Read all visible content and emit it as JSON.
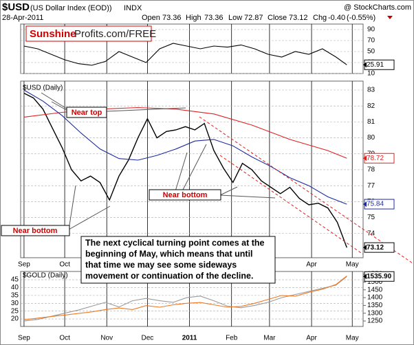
{
  "header": {
    "symbol": "$USD",
    "name": "(US Dollar Index (EOD))",
    "exchange": "INDX",
    "source": "@ StockCharts.com",
    "date": "28-Apr-2011",
    "open_label": "Open",
    "open": 73.36,
    "high_label": "High",
    "high": 73.36,
    "low_label": "Low",
    "low": 72.87,
    "close_label": "Close",
    "close": 73.12,
    "chg_label": "Chg",
    "chg": "-0.40",
    "chg_pct": "(-0.55%)",
    "logo": [
      "Sunshine",
      "Profits.com/FREE"
    ]
  },
  "chart_data": [
    {
      "type": "line",
      "xlim": [
        -2.5,
        250
      ],
      "ylim": [
        10,
        100
      ],
      "yticks": [
        10,
        30,
        50,
        70,
        90
      ],
      "xticks": [
        0,
        30,
        61,
        91,
        122,
        153,
        181,
        212,
        242
      ],
      "series": [
        {
          "color": "#000000",
          "x": [
            0,
            10,
            20,
            30,
            40,
            50,
            60,
            70,
            80,
            90,
            100,
            110,
            120,
            130,
            140,
            150,
            160,
            170,
            180,
            190,
            200,
            210,
            220,
            230,
            238
          ],
          "values": [
            60,
            55,
            45,
            35,
            28,
            25,
            32,
            50,
            40,
            30,
            55,
            65,
            60,
            55,
            60,
            58,
            62,
            55,
            45,
            40,
            50,
            45,
            55,
            40,
            25.91
          ]
        }
      ]
    },
    {
      "type": "line",
      "title": "$USD (Daily)",
      "xlim": [
        -2.5,
        250
      ],
      "ylim": [
        72.48,
        83.56
      ],
      "yticks": [
        74,
        75,
        76,
        77,
        78,
        79,
        80,
        81,
        82,
        83
      ],
      "xticks": [
        {
          "value": 0,
          "label": "Sep"
        },
        {
          "value": 30,
          "label": "Oct"
        },
        {
          "value": 61,
          "label": "Nov"
        },
        {
          "value": 91,
          "label": "Dec"
        },
        {
          "value": 122,
          "label": "2011"
        },
        {
          "value": 153,
          "label": "Feb"
        },
        {
          "value": 181,
          "label": "Mar"
        },
        {
          "value": 212,
          "label": "Apr"
        },
        {
          "value": 242,
          "label": "May"
        }
      ],
      "series": [
        {
          "color": "#000000",
          "x": [
            0,
            7,
            14,
            21,
            28,
            35,
            42,
            49,
            56,
            63,
            70,
            77,
            84,
            91,
            98,
            105,
            112,
            119,
            126,
            133,
            140,
            147,
            154,
            161,
            168,
            175,
            182,
            189,
            196,
            203,
            210,
            217,
            224,
            231,
            238
          ],
          "values": [
            82.8,
            82.5,
            81.8,
            80.6,
            79.4,
            78.0,
            77.3,
            77.6,
            77.2,
            76.1,
            77.6,
            78.6,
            80.0,
            81.2,
            80.0,
            80.4,
            80.5,
            80.7,
            80.5,
            80.9,
            79.2,
            78.1,
            77.2,
            78.4,
            78.0,
            77.3,
            76.9,
            76.5,
            76.9,
            76.2,
            75.8,
            75.9,
            75.6,
            74.7,
            73.12
          ]
        },
        {
          "color": "#e02020",
          "x": [
            0,
            28,
            56,
            84,
            112,
            140,
            168,
            196,
            224,
            238
          ],
          "values": [
            81.3,
            81.6,
            81.8,
            81.9,
            81.8,
            81.5,
            80.8,
            79.9,
            79.2,
            78.72
          ]
        },
        {
          "color": "#1c2a9c",
          "x": [
            0,
            14,
            28,
            42,
            56,
            70,
            84,
            98,
            112,
            126,
            140,
            154,
            168,
            182,
            196,
            210,
            224,
            238
          ],
          "values": [
            83.0,
            82.3,
            81.4,
            80.3,
            79.3,
            78.7,
            78.6,
            78.9,
            79.3,
            79.8,
            79.9,
            79.5,
            78.8,
            78.2,
            77.5,
            77.0,
            76.3,
            75.84
          ]
        }
      ],
      "annotations": [
        "Near top",
        "Near bottom",
        "Near bottom"
      ],
      "note": [
        "The next cyclical turning point comes at the",
        "beginning of May, which means that until",
        "that time we may see some sideways",
        "movement or continuation of the decline."
      ]
    },
    {
      "type": "line",
      "title": "$GOLD (Daily)",
      "xlim": [
        -2.5,
        250
      ],
      "ylim": [
        15.2,
        50.3
      ],
      "yticks": [
        20,
        25,
        30,
        35,
        40,
        45
      ],
      "y2lim": [
        1215,
        1568
      ],
      "y2ticks": [
        1250,
        1300,
        1350,
        1400,
        1450,
        1500,
        1550
      ],
      "xticks": [
        {
          "value": 0,
          "label": "Sep"
        },
        {
          "value": 30,
          "label": "Oct"
        },
        {
          "value": 61,
          "label": "Nov"
        },
        {
          "value": 91,
          "label": "Dec"
        },
        {
          "value": 122,
          "label": "2011"
        },
        {
          "value": 153,
          "label": "Feb"
        },
        {
          "value": 181,
          "label": "Mar"
        },
        {
          "value": 212,
          "label": "Apr"
        },
        {
          "value": 242,
          "label": "May"
        }
      ],
      "series": [
        {
          "color": "#999999",
          "axis": "y2",
          "x": [
            0,
            10,
            20,
            30,
            40,
            50,
            60,
            70,
            80,
            90,
            100,
            110,
            120,
            130,
            140,
            150,
            160,
            170,
            180,
            190,
            200,
            210,
            220,
            230,
            238
          ],
          "values": [
            1250,
            1260,
            1280,
            1300,
            1320,
            1345,
            1370,
            1340,
            1380,
            1395,
            1380,
            1370,
            1400,
            1410,
            1380,
            1345,
            1335,
            1350,
            1370,
            1400,
            1420,
            1440,
            1460,
            1480,
            1535.9
          ],
          "last_label": "1535.90"
        },
        {
          "color": "#f07820",
          "x": [
            0,
            10,
            20,
            30,
            40,
            50,
            60,
            70,
            80,
            90,
            100,
            110,
            120,
            130,
            140,
            150,
            160,
            170,
            180,
            190,
            200,
            210,
            220,
            230,
            238
          ],
          "values": [
            19.5,
            20.5,
            21.5,
            22.5,
            23.5,
            24.5,
            26,
            27,
            26,
            28.5,
            27.5,
            29,
            30,
            30.5,
            29,
            27.5,
            28,
            30,
            32.5,
            35,
            34.5,
            37,
            39,
            42,
            47.5
          ]
        }
      ]
    }
  ]
}
